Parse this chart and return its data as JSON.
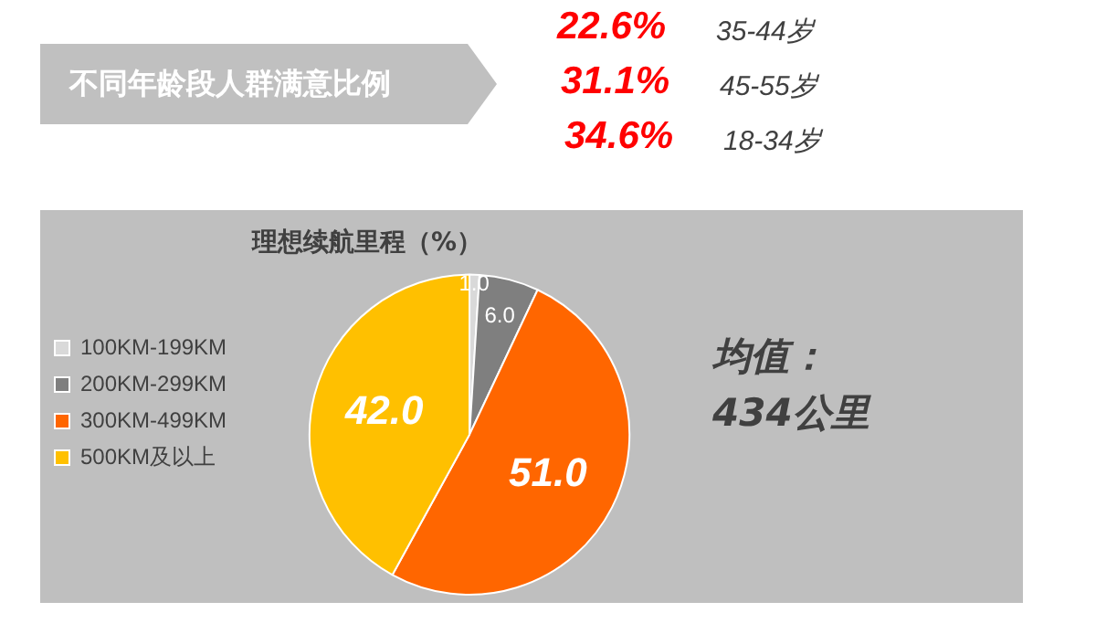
{
  "chart_data": {
    "type": "pie",
    "title": "理想续航里程（%）",
    "categories": [
      "100KM-199KM",
      "200KM-299KM",
      "300KM-499KM",
      "500KM及以上"
    ],
    "values": [
      1.0,
      6.0,
      51.0,
      42.0
    ],
    "colors": [
      "#d9d9d9",
      "#7f7f7f",
      "#ff6600",
      "#ffc000"
    ],
    "value_labels": [
      "1.0",
      "6.0",
      "51.0",
      "42.0"
    ],
    "legend": "left",
    "annotations": [
      "不同年龄段人群满意比例",
      "22.6%",
      "35-44岁",
      "31.1%",
      "45-55岁",
      "34.6%",
      "18-34岁",
      "均值：",
      "434公里"
    ]
  }
}
